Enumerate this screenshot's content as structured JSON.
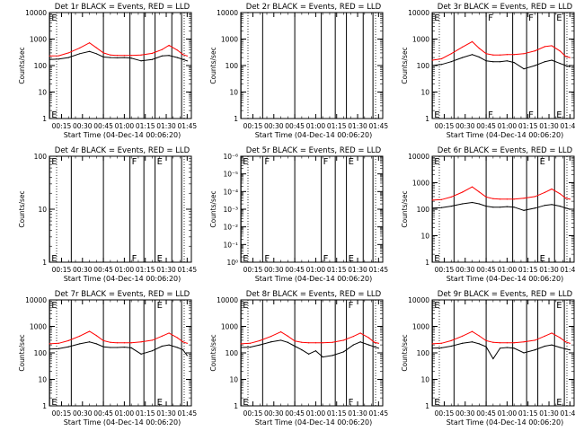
{
  "figure": {
    "x_label": "Start Time (04-Dec-14 00:06:20)",
    "y_label": "Counts/sec",
    "x_ticks": [
      "00:15",
      "00:30",
      "00:45",
      "01:00",
      "01:15",
      "01:30",
      "01:45"
    ],
    "x_tick_minutes": [
      15,
      30,
      45,
      60,
      75,
      90,
      105
    ],
    "xlim_minutes": [
      6.33,
      108
    ],
    "colors": {
      "events": "#000000",
      "lld": "#ff0000",
      "background": "#ffffff"
    }
  },
  "chart_data": [
    {
      "type": "line",
      "title": "Det 1r BLACK = Events, RED = LLD",
      "scale": "log",
      "ylim": [
        1,
        10000
      ],
      "y_ticks": [
        "1",
        "10",
        "100",
        "1000",
        "10000"
      ],
      "x_minutes": [
        6.5,
        13,
        20,
        28,
        35,
        40,
        45,
        50,
        55,
        60,
        65,
        72,
        80,
        87,
        92,
        98,
        102,
        105
      ],
      "series": [
        {
          "name": "LLD",
          "color": "#ff0000",
          "values": [
            230,
            235,
            300,
            460,
            720,
            470,
            300,
            250,
            240,
            240,
            240,
            250,
            290,
            400,
            580,
            380,
            260,
            230
          ]
        },
        {
          "name": "Events",
          "color": "#000000",
          "values": [
            170,
            175,
            200,
            280,
            340,
            280,
            210,
            200,
            195,
            200,
            190,
            150,
            170,
            230,
            240,
            200,
            170,
            150
          ]
        }
      ],
      "vlines": [
        6.5,
        22,
        45,
        64,
        74,
        82,
        94,
        101
      ],
      "markers": [
        {
          "x": 6.5,
          "text": "E"
        }
      ]
    },
    {
      "type": "line",
      "title": "Det 2r BLACK = Events, RED = LLD",
      "scale": "log",
      "ylim": [
        1,
        10000
      ],
      "y_ticks": [
        "1",
        "10",
        "100",
        "1000",
        "10000"
      ],
      "x_minutes": [],
      "series": [],
      "vlines": [
        6.5,
        22,
        45,
        64,
        74,
        82,
        94,
        101
      ],
      "markers": []
    },
    {
      "type": "line",
      "title": "Det 3r BLACK = Events, RED = LLD",
      "scale": "log",
      "ylim": [
        1,
        10000
      ],
      "y_ticks": [
        "1",
        "10",
        "100",
        "1000",
        "10000"
      ],
      "x_minutes": [
        6.5,
        13,
        20,
        28,
        35,
        40,
        45,
        50,
        55,
        60,
        65,
        72,
        80,
        87,
        92,
        98,
        102,
        105
      ],
      "series": [
        {
          "name": "LLD",
          "color": "#ff0000",
          "values": [
            160,
            180,
            280,
            500,
            800,
            450,
            280,
            250,
            250,
            260,
            260,
            280,
            360,
            520,
            560,
            350,
            220,
            200
          ]
        },
        {
          "name": "Events",
          "color": "#000000",
          "values": [
            100,
            110,
            140,
            200,
            260,
            210,
            150,
            140,
            140,
            150,
            130,
            75,
            100,
            140,
            160,
            120,
            100,
            90
          ]
        }
      ],
      "vlines": [
        6.5,
        22,
        45,
        64,
        74,
        82,
        94,
        101
      ],
      "markers": [
        {
          "x": 6.5,
          "text": "E"
        },
        {
          "x": 45,
          "text": "F"
        },
        {
          "x": 74,
          "text": "F"
        },
        {
          "x": 94,
          "text": "E"
        }
      ]
    },
    {
      "type": "line",
      "title": "Det 4r BLACK = Events, RED = LLD",
      "scale": "log",
      "ylim": [
        1,
        100
      ],
      "y_ticks": [
        "1",
        "10",
        "100"
      ],
      "x_minutes": [],
      "series": [],
      "vlines": [
        6.5,
        22,
        45,
        64,
        74,
        82,
        94,
        101
      ],
      "markers": [
        {
          "x": 6.5,
          "text": "E"
        },
        {
          "x": 64,
          "text": "F"
        },
        {
          "x": 82,
          "text": "E"
        }
      ]
    },
    {
      "type": "line",
      "title": "Det 5r BLACK = Events, RED = LLD",
      "scale": "log",
      "ylim": [
        1,
        1e-06
      ],
      "y_ticks": [
        "10⁰",
        "10⁻¹",
        "10⁻²",
        "10⁻³",
        "10⁻⁴",
        "10⁻⁵",
        "10⁻⁶"
      ],
      "x_minutes": [],
      "series": [],
      "vlines": [
        6.5,
        22,
        45,
        64,
        74,
        82,
        94,
        101
      ],
      "markers": [
        {
          "x": 6.5,
          "text": "E"
        },
        {
          "x": 22,
          "text": "F"
        },
        {
          "x": 64,
          "text": "F"
        },
        {
          "x": 82,
          "text": "E"
        }
      ]
    },
    {
      "type": "line",
      "title": "Det 6r BLACK = Events, RED = LLD",
      "scale": "log",
      "ylim": [
        1,
        10000
      ],
      "y_ticks": [
        "1",
        "10",
        "100",
        "1000",
        "10000"
      ],
      "x_minutes": [
        6.5,
        13,
        20,
        28,
        35,
        40,
        45,
        50,
        55,
        60,
        65,
        72,
        80,
        87,
        92,
        98,
        102,
        105
      ],
      "series": [
        {
          "name": "LLD",
          "color": "#ff0000",
          "values": [
            220,
            230,
            290,
            440,
            700,
            450,
            290,
            250,
            240,
            240,
            240,
            260,
            300,
            430,
            580,
            380,
            260,
            240
          ]
        },
        {
          "name": "Events",
          "color": "#000000",
          "values": [
            110,
            115,
            130,
            160,
            180,
            160,
            130,
            120,
            120,
            125,
            120,
            90,
            110,
            140,
            150,
            130,
            110,
            100
          ]
        }
      ],
      "vlines": [
        6.5,
        22,
        45,
        64,
        74,
        82,
        94,
        101
      ],
      "markers": [
        {
          "x": 6.5,
          "text": "E"
        },
        {
          "x": 82,
          "text": "E"
        }
      ]
    },
    {
      "type": "line",
      "title": "Det 7r BLACK = Events, RED = LLD",
      "scale": "log",
      "ylim": [
        1,
        10000
      ],
      "y_ticks": [
        "1",
        "10",
        "100",
        "1000",
        "10000"
      ],
      "x_minutes": [
        6.5,
        13,
        20,
        28,
        35,
        40,
        45,
        50,
        55,
        60,
        65,
        72,
        80,
        87,
        92,
        98,
        102,
        105
      ],
      "series": [
        {
          "name": "LLD",
          "color": "#ff0000",
          "values": [
            220,
            230,
            290,
            430,
            650,
            450,
            290,
            250,
            240,
            240,
            240,
            260,
            300,
            430,
            560,
            370,
            260,
            230
          ]
        },
        {
          "name": "Events",
          "color": "#000000",
          "values": [
            140,
            145,
            170,
            220,
            260,
            220,
            170,
            160,
            160,
            165,
            155,
            90,
            120,
            180,
            200,
            160,
            130,
            80
          ]
        }
      ],
      "vlines": [
        6.5,
        22,
        45,
        64,
        74,
        82,
        94,
        101
      ],
      "markers": [
        {
          "x": 6.5,
          "text": "E"
        },
        {
          "x": 82,
          "text": "E"
        }
      ]
    },
    {
      "type": "line",
      "title": "Det 8r BLACK = Events, RED = LLD",
      "scale": "log",
      "ylim": [
        1,
        10000
      ],
      "y_ticks": [
        "1",
        "10",
        "100",
        "1000",
        "10000"
      ],
      "x_minutes": [
        6.5,
        13,
        20,
        28,
        35,
        40,
        45,
        50,
        55,
        60,
        65,
        72,
        80,
        87,
        92,
        98,
        102,
        105
      ],
      "series": [
        {
          "name": "LLD",
          "color": "#ff0000",
          "values": [
            220,
            230,
            290,
            420,
            620,
            430,
            280,
            250,
            240,
            240,
            240,
            250,
            300,
            420,
            560,
            370,
            250,
            230
          ]
        },
        {
          "name": "Events",
          "color": "#000000",
          "values": [
            160,
            165,
            200,
            260,
            300,
            250,
            180,
            130,
            90,
            120,
            70,
            80,
            110,
            200,
            260,
            200,
            170,
            150
          ]
        }
      ],
      "vlines": [
        6.5,
        22,
        45,
        64,
        74,
        82,
        94,
        101
      ],
      "markers": [
        {
          "x": 6.5,
          "text": "E"
        },
        {
          "x": 82,
          "text": "F"
        }
      ]
    },
    {
      "type": "line",
      "title": "Det 9r BLACK = Events, RED = LLD",
      "scale": "log",
      "ylim": [
        1,
        10000
      ],
      "y_ticks": [
        "1",
        "10",
        "100",
        "1000",
        "10000"
      ],
      "x_minutes": [
        6.5,
        13,
        20,
        28,
        35,
        40,
        45,
        50,
        55,
        60,
        65,
        72,
        80,
        87,
        92,
        98,
        102,
        105
      ],
      "series": [
        {
          "name": "LLD",
          "color": "#ff0000",
          "values": [
            220,
            230,
            290,
            430,
            640,
            440,
            290,
            250,
            240,
            240,
            240,
            260,
            300,
            430,
            560,
            370,
            260,
            230
          ]
        },
        {
          "name": "Events",
          "color": "#000000",
          "values": [
            150,
            155,
            180,
            230,
            260,
            220,
            170,
            60,
            150,
            160,
            150,
            100,
            130,
            180,
            200,
            160,
            140,
            130
          ]
        }
      ],
      "vlines": [
        6.5,
        22,
        45,
        64,
        74,
        82,
        94,
        101
      ],
      "markers": [
        {
          "x": 6.5,
          "text": "E"
        },
        {
          "x": 94,
          "text": "E"
        }
      ]
    }
  ]
}
